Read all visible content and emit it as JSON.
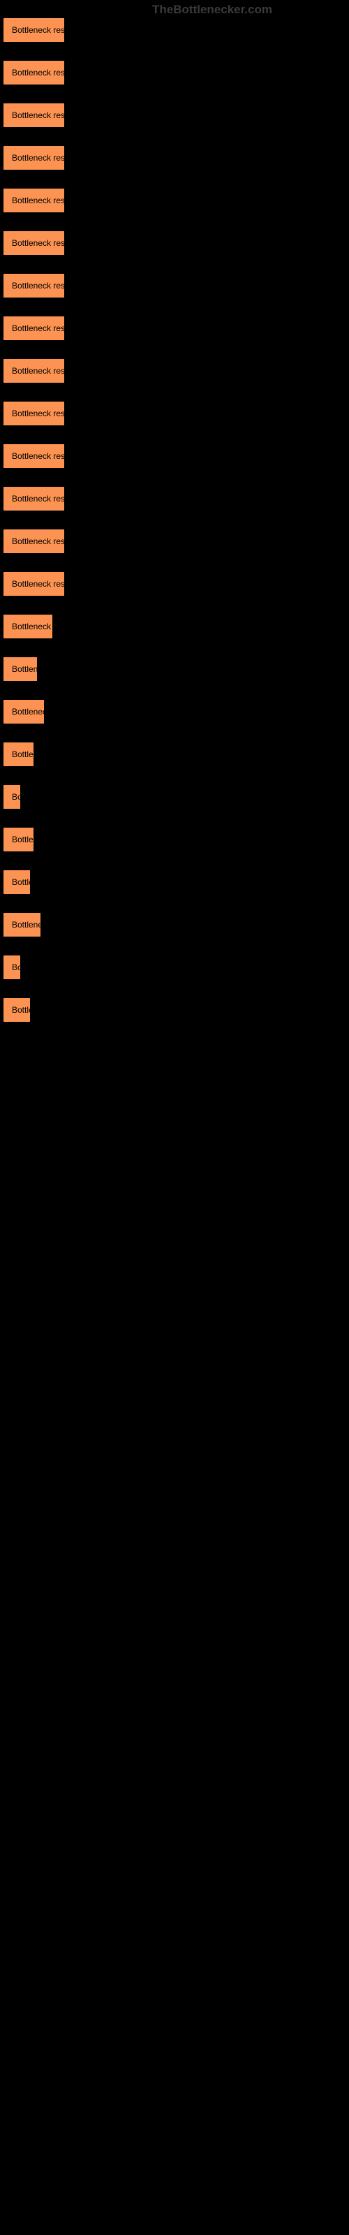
{
  "watermark": "TheBottlenecker.com",
  "buttons": [
    {
      "label": "Bottleneck result",
      "width": 89
    },
    {
      "label": "Bottleneck result",
      "width": 89
    },
    {
      "label": "Bottleneck result",
      "width": 89
    },
    {
      "label": "Bottleneck result",
      "width": 89
    },
    {
      "label": "Bottleneck result",
      "width": 89
    },
    {
      "label": "Bottleneck result",
      "width": 89
    },
    {
      "label": "Bottleneck result",
      "width": 89
    },
    {
      "label": "Bottleneck result",
      "width": 89
    },
    {
      "label": "Bottleneck result",
      "width": 89
    },
    {
      "label": "Bottleneck result",
      "width": 89
    },
    {
      "label": "Bottleneck result",
      "width": 89
    },
    {
      "label": "Bottleneck result",
      "width": 89
    },
    {
      "label": "Bottleneck result",
      "width": 89
    },
    {
      "label": "Bottleneck result",
      "width": 89
    },
    {
      "label": "Bottleneck re",
      "width": 72
    },
    {
      "label": "Bottlene",
      "width": 50
    },
    {
      "label": "Bottleneck",
      "width": 60
    },
    {
      "label": "Bottlen",
      "width": 45
    },
    {
      "label": "Bo",
      "width": 21
    },
    {
      "label": "Bottlen",
      "width": 45
    },
    {
      "label": "Bottle",
      "width": 40
    },
    {
      "label": "Bottlenec",
      "width": 55
    },
    {
      "label": "Bo",
      "width": 20
    },
    {
      "label": "Bottle",
      "width": 40
    }
  ],
  "styles": {
    "button_bg": "#fc9352",
    "button_color": "#000000",
    "body_bg": "#000000",
    "watermark_color": "#3a3a3a"
  }
}
